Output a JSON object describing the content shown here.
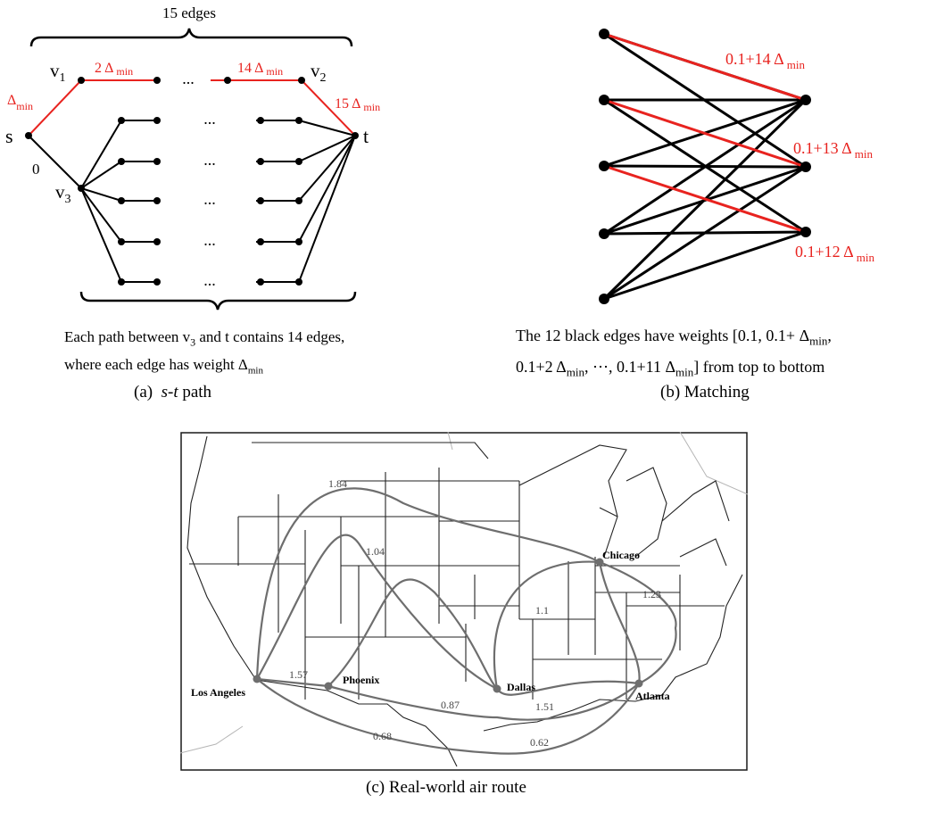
{
  "panel_a": {
    "brace_top_label": "15 edges",
    "nodes": {
      "s": "s",
      "t": "t",
      "v1": "v",
      "v1_sub": "1",
      "v2": "v",
      "v2_sub": "2",
      "v3": "v",
      "v3_sub": "3"
    },
    "edge_labels": {
      "s_v1": "Δ",
      "s_v1_sub": "min",
      "v1_first": "2 Δ",
      "v1_first_sub": "min",
      "last_v2": "14 Δ",
      "last_v2_sub": "min",
      "v2_t": "15 Δ",
      "v2_t_sub": "min",
      "s_v3": "0"
    },
    "ellipsis": "...",
    "desc_line1_pre": "Each path between v",
    "desc_line1_sub": "3",
    "desc_line1_post": " and t contains 14 edges,",
    "desc_line2_pre": "where each edge has weight  Δ",
    "desc_line2_sub": "min",
    "caption_prefix": "(a)  ",
    "caption_math": "s-t",
    "caption_suffix": " path"
  },
  "panel_b": {
    "red_labels": [
      {
        "text": "0.1+14 Δ",
        "sub": "min"
      },
      {
        "text": "0.1+13 Δ",
        "sub": "min"
      },
      {
        "text": "0.1+12 Δ",
        "sub": "min"
      }
    ],
    "desc_line1_pre": "The 12 black edges have weights  [0.1, 0.1+ Δ",
    "desc_line1_sub": "min",
    "desc_line1_post": ",",
    "desc_line2_a": "0.1+2 Δ",
    "desc_line2_a_sub": "min",
    "desc_line2_b": ", ⋯, 0.1+11 Δ",
    "desc_line2_b_sub": "min",
    "desc_line2_c": "] from top to bottom",
    "caption": "(b)  Matching"
  },
  "panel_c": {
    "cities": [
      "Los Angeles",
      "Phoenix",
      "Dallas",
      "Chicago",
      "Atlanta"
    ],
    "route_weights": [
      "1.84",
      "1.04",
      "1.1",
      "1.23",
      "1.57",
      "0.87",
      "1.51",
      "0.68",
      "0.62"
    ],
    "caption": "(c)  Real-world air route"
  },
  "colors": {
    "red": "#e8231f",
    "black": "#000000",
    "route_gray": "#6e6e6e",
    "map_border": "#1a1a1a"
  }
}
